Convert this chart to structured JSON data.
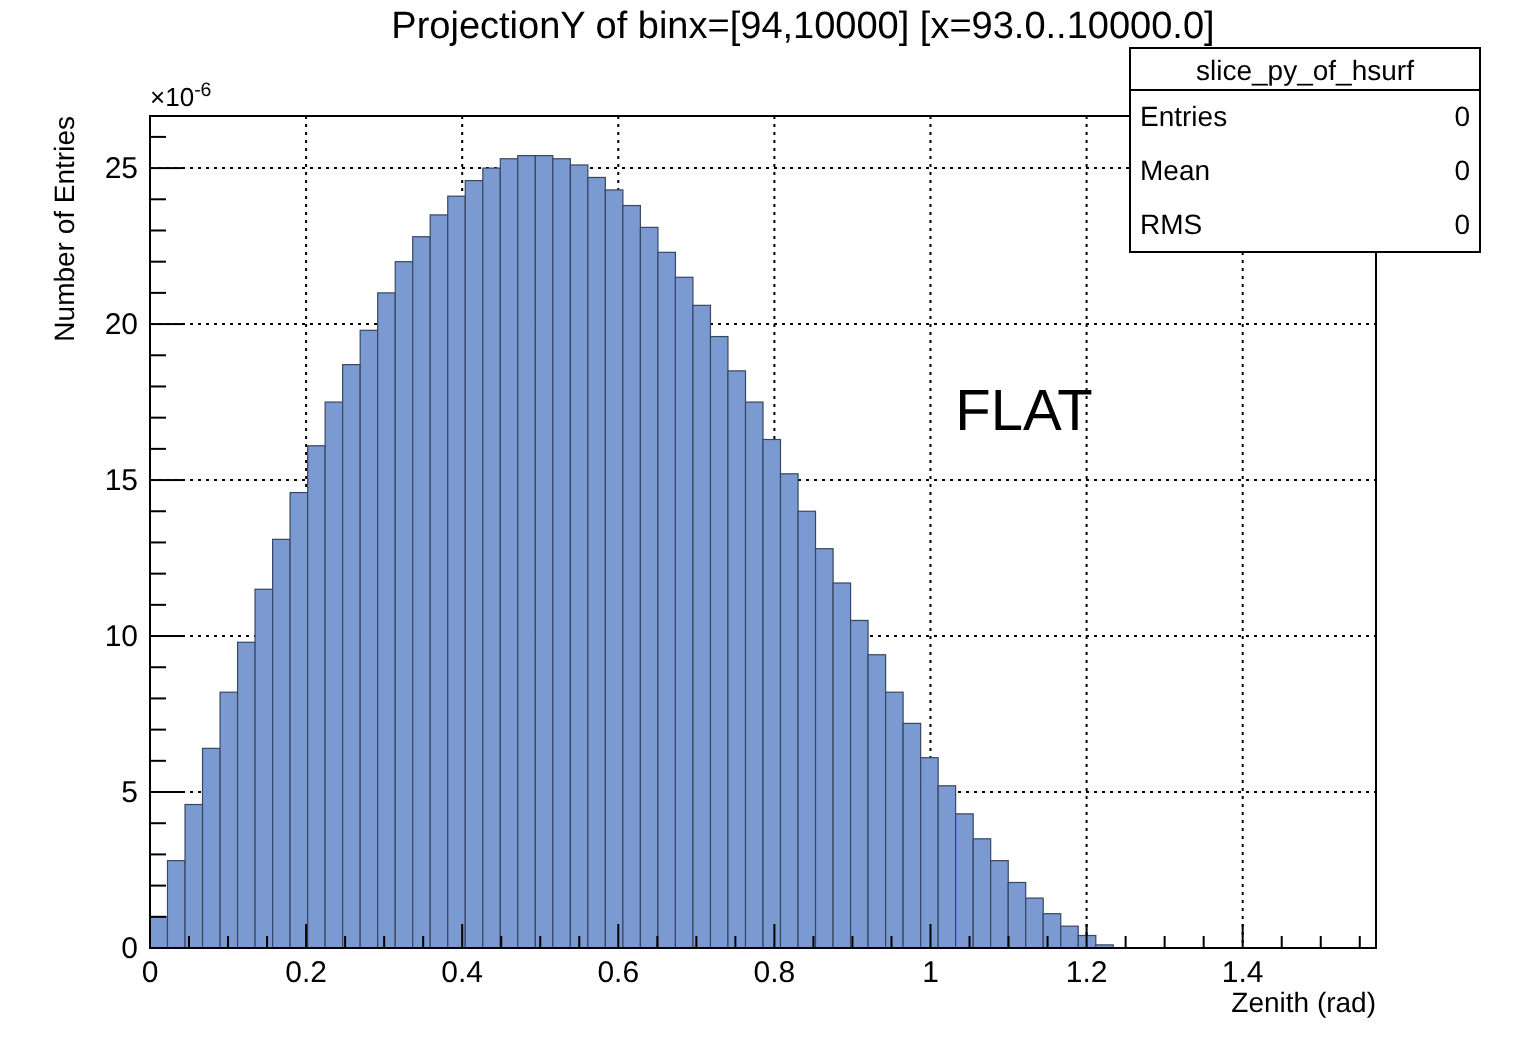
{
  "chart_data": {
    "type": "histogram",
    "title": "ProjectionY of binx=[94,10000] [x=93.0..10000.0]",
    "xlabel": "Zenith (rad)",
    "ylabel": "Number of Entries",
    "bins": [
      0,
      0.0224,
      0.0449,
      0.0673,
      0.0898,
      0.1122,
      0.1346,
      0.1571,
      0.1795,
      0.202,
      0.2244,
      0.2468,
      0.2693,
      0.2917,
      0.3142,
      0.3366,
      0.359,
      0.3815,
      0.4039,
      0.4264,
      0.4488,
      0.4712,
      0.4937,
      0.5161,
      0.5386,
      0.561,
      0.5834,
      0.6059,
      0.6283,
      0.6508,
      0.6732,
      0.6956,
      0.7181,
      0.7405,
      0.763,
      0.7854,
      0.8078,
      0.8303,
      0.8527,
      0.8752,
      0.8976,
      0.92,
      0.9425,
      0.9649,
      0.9874,
      1.0098,
      1.0322,
      1.0547,
      1.0771,
      1.0996,
      1.122,
      1.1444,
      1.1669,
      1.1893,
      1.2118,
      1.2342,
      1.2566,
      1.2791,
      1.3015,
      1.324,
      1.3464,
      1.3688,
      1.3913,
      1.4137,
      1.4362,
      1.4586,
      1.481,
      1.5035,
      1.5259,
      1.5484,
      1.5708
    ],
    "values": [
      1.0,
      2.8,
      4.6,
      6.4,
      8.2,
      9.8,
      11.5,
      13.1,
      14.6,
      16.1,
      17.5,
      18.7,
      19.8,
      21.0,
      22.0,
      22.8,
      23.5,
      24.1,
      24.6,
      25.0,
      25.3,
      25.4,
      25.4,
      25.3,
      25.1,
      24.7,
      24.3,
      23.8,
      23.1,
      22.3,
      21.5,
      20.6,
      19.6,
      18.5,
      17.5,
      16.3,
      15.2,
      14.0,
      12.8,
      11.7,
      10.5,
      9.4,
      8.2,
      7.2,
      6.1,
      5.2,
      4.3,
      3.5,
      2.8,
      2.1,
      1.6,
      1.1,
      0.7,
      0.4,
      0.1,
      0,
      0,
      0,
      0,
      0,
      0,
      0,
      0,
      0,
      0,
      0,
      0,
      0,
      0,
      0
    ],
    "color": "#7b9ad2",
    "xlim": [
      0,
      1.5708
    ],
    "ylim": [
      0,
      26.67
    ],
    "xticks": [
      0,
      {
        "value": 0.05,
        "label": null
      },
      {
        "value": 0.1,
        "label": null
      },
      {
        "value": 0.15,
        "label": null
      },
      0.2,
      {
        "value": 0.25,
        "label": null
      },
      {
        "value": 0.3,
        "label": null
      },
      {
        "value": 0.35,
        "label": null
      },
      0.4,
      {
        "value": 0.45,
        "label": null
      },
      {
        "value": 0.5,
        "label": null
      },
      {
        "value": 0.55,
        "label": null
      },
      0.6,
      {
        "value": 0.65,
        "label": null
      },
      {
        "value": 0.7,
        "label": null
      },
      {
        "value": 0.75,
        "label": null
      },
      0.8,
      {
        "value": 0.85,
        "label": null
      },
      {
        "value": 0.9,
        "label": null
      },
      {
        "value": 0.95,
        "label": null
      },
      1,
      {
        "value": 1.05,
        "label": null
      },
      {
        "value": 1.1,
        "label": null
      },
      {
        "value": 1.15,
        "label": null
      },
      1.2,
      {
        "value": 1.25,
        "label": null
      },
      {
        "value": 1.3,
        "label": null
      },
      {
        "value": 1.35,
        "label": null
      },
      1.4,
      {
        "value": 1.45,
        "label": null
      },
      {
        "value": 1.5,
        "label": null
      },
      {
        "value": 1.55,
        "label": null
      }
    ],
    "yticks": [
      0,
      {
        "value": 1,
        "label": null
      },
      {
        "value": 2,
        "label": null
      },
      {
        "value": 3,
        "label": null
      },
      {
        "value": 4,
        "label": null
      },
      5,
      {
        "value": 6,
        "label": null
      },
      {
        "value": 7,
        "label": null
      },
      {
        "value": 8,
        "label": null
      },
      {
        "value": 9,
        "label": null
      },
      10,
      {
        "value": 11,
        "label": null
      },
      {
        "value": 12,
        "label": null
      },
      {
        "value": 13,
        "label": null
      },
      {
        "value": 14,
        "label": null
      },
      15,
      {
        "value": 16,
        "label": null
      },
      {
        "value": 17,
        "label": null
      },
      {
        "value": 18,
        "label": null
      },
      {
        "value": 19,
        "label": null
      },
      20,
      {
        "value": 21,
        "label": null
      },
      {
        "value": 22,
        "label": null
      },
      {
        "value": 23,
        "label": null
      },
      {
        "value": 24,
        "label": null
      },
      25,
      {
        "value": 26,
        "label": null
      }
    ],
    "grid": true,
    "annotations": [
      "×10$^{-6}$",
      "FLAT",
      "slice_py_of_hsurf",
      "Entries",
      "0",
      "Mean",
      "0",
      "RMS",
      "0"
    ]
  }
}
